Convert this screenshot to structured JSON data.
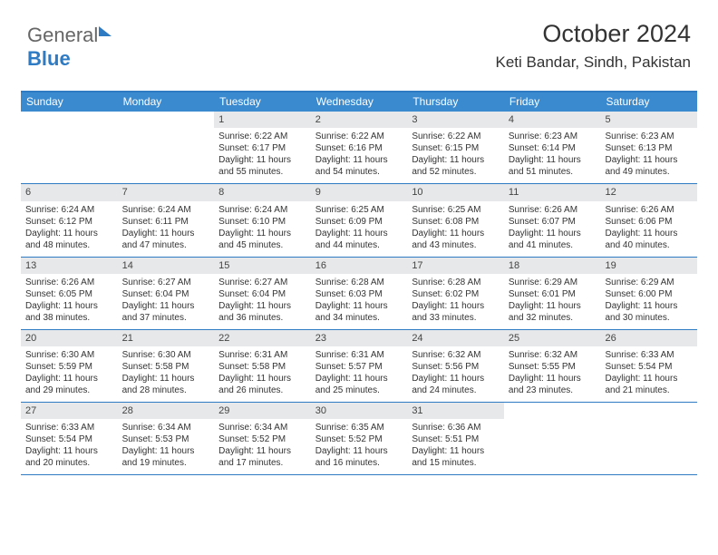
{
  "brand": {
    "part1": "General",
    "part2": "Blue"
  },
  "title": "October 2024",
  "location": "Keti Bandar, Sindh, Pakistan",
  "colors": {
    "accent": "#3a8ad0",
    "rule": "#2e7bc4",
    "daybg": "#e7e8e9",
    "text": "#333"
  },
  "days": [
    "Sunday",
    "Monday",
    "Tuesday",
    "Wednesday",
    "Thursday",
    "Friday",
    "Saturday"
  ],
  "weeks": [
    [
      null,
      null,
      {
        "n": "1",
        "sr": "6:22 AM",
        "ss": "6:17 PM",
        "dl": "11 hours and 55 minutes."
      },
      {
        "n": "2",
        "sr": "6:22 AM",
        "ss": "6:16 PM",
        "dl": "11 hours and 54 minutes."
      },
      {
        "n": "3",
        "sr": "6:22 AM",
        "ss": "6:15 PM",
        "dl": "11 hours and 52 minutes."
      },
      {
        "n": "4",
        "sr": "6:23 AM",
        "ss": "6:14 PM",
        "dl": "11 hours and 51 minutes."
      },
      {
        "n": "5",
        "sr": "6:23 AM",
        "ss": "6:13 PM",
        "dl": "11 hours and 49 minutes."
      }
    ],
    [
      {
        "n": "6",
        "sr": "6:24 AM",
        "ss": "6:12 PM",
        "dl": "11 hours and 48 minutes."
      },
      {
        "n": "7",
        "sr": "6:24 AM",
        "ss": "6:11 PM",
        "dl": "11 hours and 47 minutes."
      },
      {
        "n": "8",
        "sr": "6:24 AM",
        "ss": "6:10 PM",
        "dl": "11 hours and 45 minutes."
      },
      {
        "n": "9",
        "sr": "6:25 AM",
        "ss": "6:09 PM",
        "dl": "11 hours and 44 minutes."
      },
      {
        "n": "10",
        "sr": "6:25 AM",
        "ss": "6:08 PM",
        "dl": "11 hours and 43 minutes."
      },
      {
        "n": "11",
        "sr": "6:26 AM",
        "ss": "6:07 PM",
        "dl": "11 hours and 41 minutes."
      },
      {
        "n": "12",
        "sr": "6:26 AM",
        "ss": "6:06 PM",
        "dl": "11 hours and 40 minutes."
      }
    ],
    [
      {
        "n": "13",
        "sr": "6:26 AM",
        "ss": "6:05 PM",
        "dl": "11 hours and 38 minutes."
      },
      {
        "n": "14",
        "sr": "6:27 AM",
        "ss": "6:04 PM",
        "dl": "11 hours and 37 minutes."
      },
      {
        "n": "15",
        "sr": "6:27 AM",
        "ss": "6:04 PM",
        "dl": "11 hours and 36 minutes."
      },
      {
        "n": "16",
        "sr": "6:28 AM",
        "ss": "6:03 PM",
        "dl": "11 hours and 34 minutes."
      },
      {
        "n": "17",
        "sr": "6:28 AM",
        "ss": "6:02 PM",
        "dl": "11 hours and 33 minutes."
      },
      {
        "n": "18",
        "sr": "6:29 AM",
        "ss": "6:01 PM",
        "dl": "11 hours and 32 minutes."
      },
      {
        "n": "19",
        "sr": "6:29 AM",
        "ss": "6:00 PM",
        "dl": "11 hours and 30 minutes."
      }
    ],
    [
      {
        "n": "20",
        "sr": "6:30 AM",
        "ss": "5:59 PM",
        "dl": "11 hours and 29 minutes."
      },
      {
        "n": "21",
        "sr": "6:30 AM",
        "ss": "5:58 PM",
        "dl": "11 hours and 28 minutes."
      },
      {
        "n": "22",
        "sr": "6:31 AM",
        "ss": "5:58 PM",
        "dl": "11 hours and 26 minutes."
      },
      {
        "n": "23",
        "sr": "6:31 AM",
        "ss": "5:57 PM",
        "dl": "11 hours and 25 minutes."
      },
      {
        "n": "24",
        "sr": "6:32 AM",
        "ss": "5:56 PM",
        "dl": "11 hours and 24 minutes."
      },
      {
        "n": "25",
        "sr": "6:32 AM",
        "ss": "5:55 PM",
        "dl": "11 hours and 23 minutes."
      },
      {
        "n": "26",
        "sr": "6:33 AM",
        "ss": "5:54 PM",
        "dl": "11 hours and 21 minutes."
      }
    ],
    [
      {
        "n": "27",
        "sr": "6:33 AM",
        "ss": "5:54 PM",
        "dl": "11 hours and 20 minutes."
      },
      {
        "n": "28",
        "sr": "6:34 AM",
        "ss": "5:53 PM",
        "dl": "11 hours and 19 minutes."
      },
      {
        "n": "29",
        "sr": "6:34 AM",
        "ss": "5:52 PM",
        "dl": "11 hours and 17 minutes."
      },
      {
        "n": "30",
        "sr": "6:35 AM",
        "ss": "5:52 PM",
        "dl": "11 hours and 16 minutes."
      },
      {
        "n": "31",
        "sr": "6:36 AM",
        "ss": "5:51 PM",
        "dl": "11 hours and 15 minutes."
      },
      null,
      null
    ]
  ],
  "labels": {
    "sunrise": "Sunrise:",
    "sunset": "Sunset:",
    "daylight": "Daylight:"
  }
}
